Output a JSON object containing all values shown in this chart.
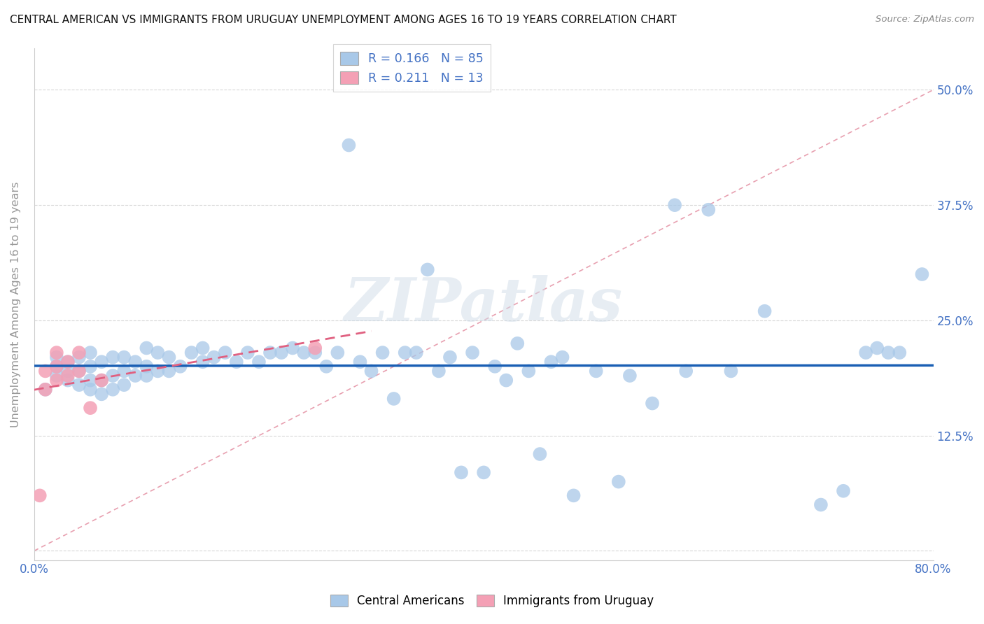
{
  "title": "CENTRAL AMERICAN VS IMMIGRANTS FROM URUGUAY UNEMPLOYMENT AMONG AGES 16 TO 19 YEARS CORRELATION CHART",
  "source": "Source: ZipAtlas.com",
  "ylabel": "Unemployment Among Ages 16 to 19 years",
  "ytick_labels": [
    "",
    "12.5%",
    "25.0%",
    "37.5%",
    "50.0%"
  ],
  "yticks": [
    0.0,
    0.125,
    0.25,
    0.375,
    0.5
  ],
  "xlim": [
    0.0,
    0.8
  ],
  "ylim": [
    -0.01,
    0.545
  ],
  "legend_r_blue": "R = 0.166",
  "legend_n_blue": "N = 85",
  "legend_r_pink": "R = 0.211",
  "legend_n_pink": "N = 13",
  "blue_scatter_color": "#a8c8e8",
  "blue_line_color": "#1a5fb4",
  "pink_scatter_color": "#f4a0b5",
  "pink_line_color": "#e06080",
  "ref_line_color": "#e8a0b0",
  "grid_color": "#d8d8d8",
  "axis_label_color": "#4472c4",
  "background_color": "#ffffff",
  "watermark": "ZIPatlas",
  "blue_x": [
    0.01,
    0.02,
    0.02,
    0.02,
    0.03,
    0.03,
    0.03,
    0.04,
    0.04,
    0.04,
    0.05,
    0.05,
    0.05,
    0.05,
    0.06,
    0.06,
    0.06,
    0.07,
    0.07,
    0.07,
    0.08,
    0.08,
    0.08,
    0.09,
    0.09,
    0.1,
    0.1,
    0.1,
    0.11,
    0.11,
    0.12,
    0.12,
    0.13,
    0.14,
    0.15,
    0.15,
    0.16,
    0.17,
    0.18,
    0.19,
    0.2,
    0.21,
    0.22,
    0.23,
    0.24,
    0.25,
    0.26,
    0.27,
    0.28,
    0.29,
    0.3,
    0.31,
    0.32,
    0.33,
    0.34,
    0.35,
    0.36,
    0.37,
    0.38,
    0.39,
    0.4,
    0.41,
    0.42,
    0.43,
    0.44,
    0.45,
    0.46,
    0.47,
    0.48,
    0.5,
    0.52,
    0.53,
    0.55,
    0.57,
    0.58,
    0.6,
    0.62,
    0.65,
    0.7,
    0.72,
    0.74,
    0.75,
    0.76,
    0.77,
    0.79
  ],
  "blue_y": [
    0.175,
    0.19,
    0.2,
    0.21,
    0.185,
    0.195,
    0.205,
    0.18,
    0.195,
    0.21,
    0.175,
    0.185,
    0.2,
    0.215,
    0.17,
    0.185,
    0.205,
    0.175,
    0.19,
    0.21,
    0.18,
    0.195,
    0.21,
    0.19,
    0.205,
    0.19,
    0.2,
    0.22,
    0.195,
    0.215,
    0.195,
    0.21,
    0.2,
    0.215,
    0.205,
    0.22,
    0.21,
    0.215,
    0.205,
    0.215,
    0.205,
    0.215,
    0.215,
    0.22,
    0.215,
    0.215,
    0.2,
    0.215,
    0.44,
    0.205,
    0.195,
    0.215,
    0.165,
    0.215,
    0.215,
    0.305,
    0.195,
    0.21,
    0.085,
    0.215,
    0.085,
    0.2,
    0.185,
    0.225,
    0.195,
    0.105,
    0.205,
    0.21,
    0.06,
    0.195,
    0.075,
    0.19,
    0.16,
    0.375,
    0.195,
    0.37,
    0.195,
    0.26,
    0.05,
    0.065,
    0.215,
    0.22,
    0.215,
    0.215,
    0.3
  ],
  "pink_x": [
    0.005,
    0.01,
    0.01,
    0.02,
    0.02,
    0.02,
    0.03,
    0.03,
    0.04,
    0.04,
    0.05,
    0.06,
    0.25
  ],
  "pink_y": [
    0.06,
    0.175,
    0.195,
    0.185,
    0.2,
    0.215,
    0.19,
    0.205,
    0.195,
    0.215,
    0.155,
    0.185,
    0.22
  ]
}
